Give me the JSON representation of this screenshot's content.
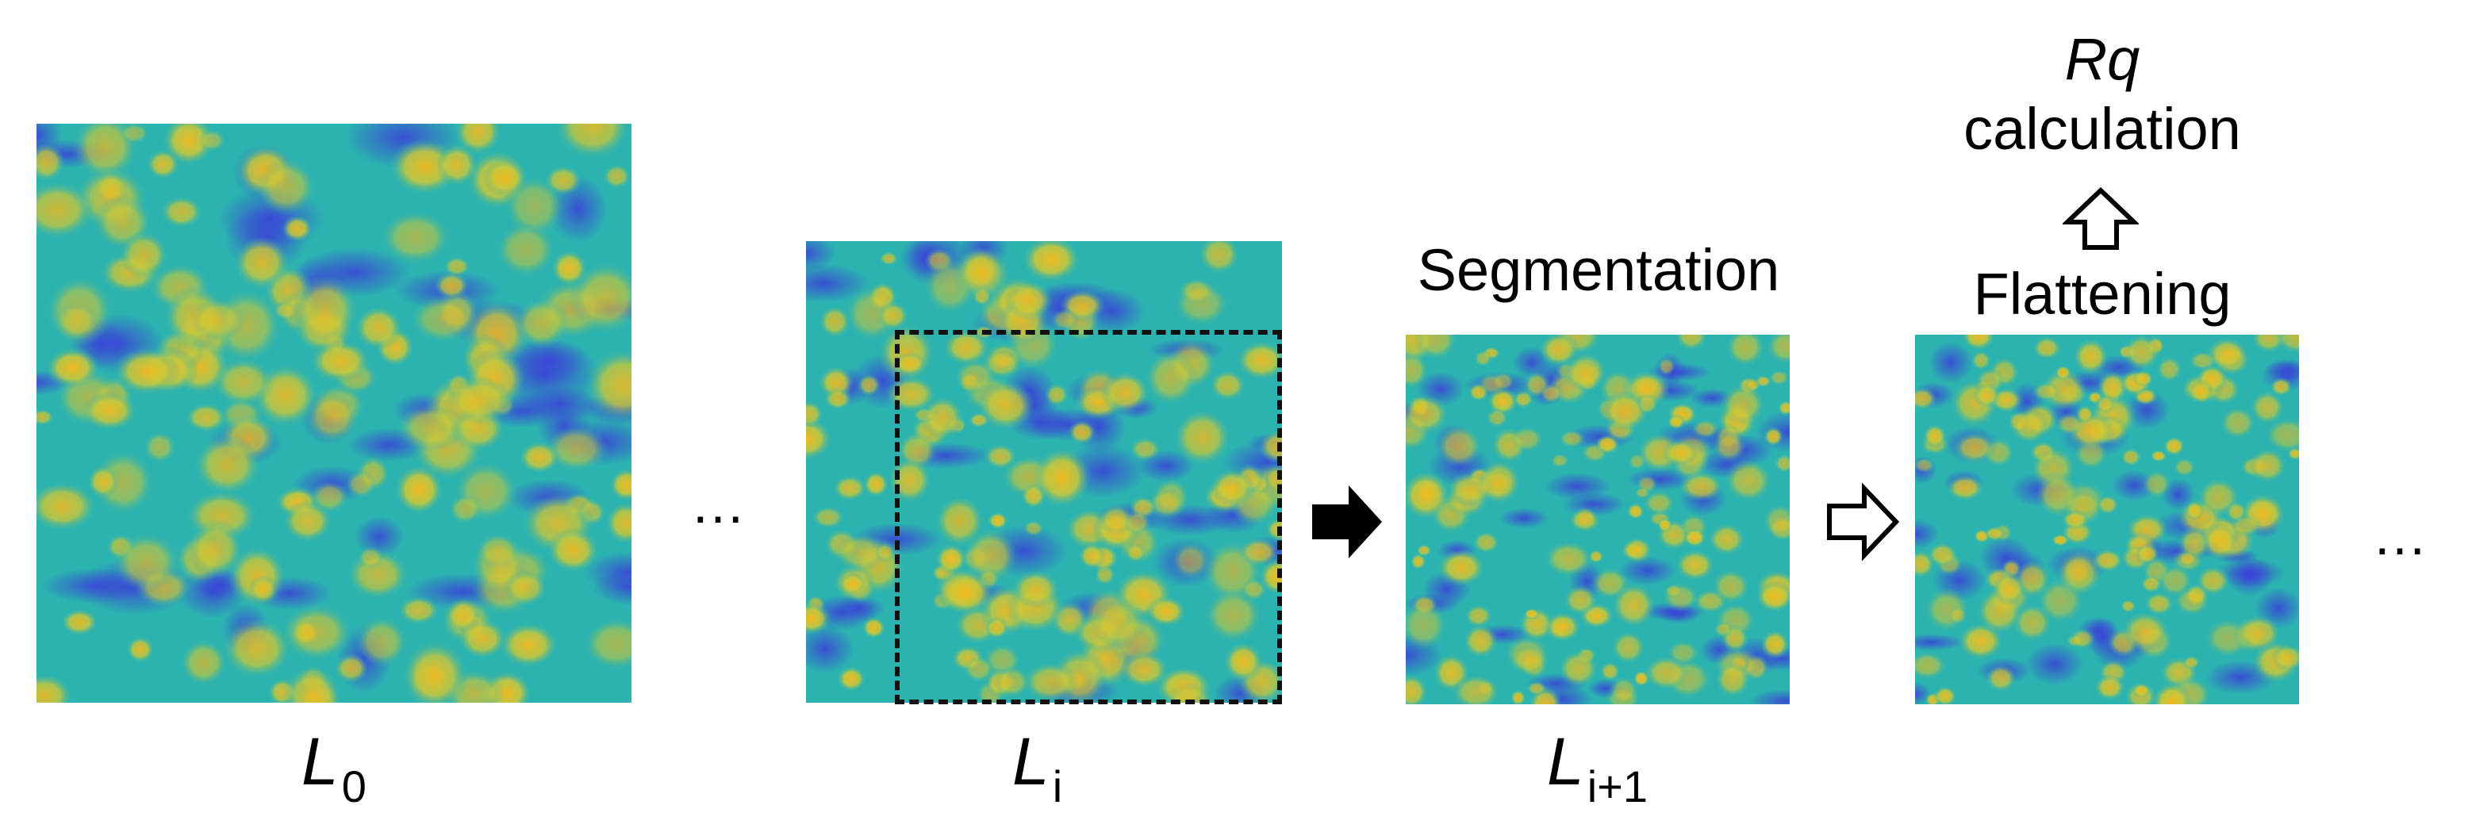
{
  "panels": [
    {
      "id": "L0",
      "label_main": "L",
      "label_sub": "0"
    },
    {
      "id": "Li",
      "label_main": "L",
      "label_sub": "i"
    },
    {
      "id": "Li1",
      "label_main": "L",
      "label_sub": "i+1"
    },
    {
      "id": "flat",
      "label_main": "",
      "label_sub": ""
    }
  ],
  "steps": {
    "segmentation": "Segmentation",
    "flattening": "Flattening",
    "rq_main": "Rq",
    "rq_rest": "calculation"
  },
  "ellipsis": "…",
  "colors": {
    "surface_low": "#3a3fd8",
    "surface_mid": "#2bb3b0",
    "surface_high": "#f5b81c",
    "dashed_box": "#111111"
  }
}
